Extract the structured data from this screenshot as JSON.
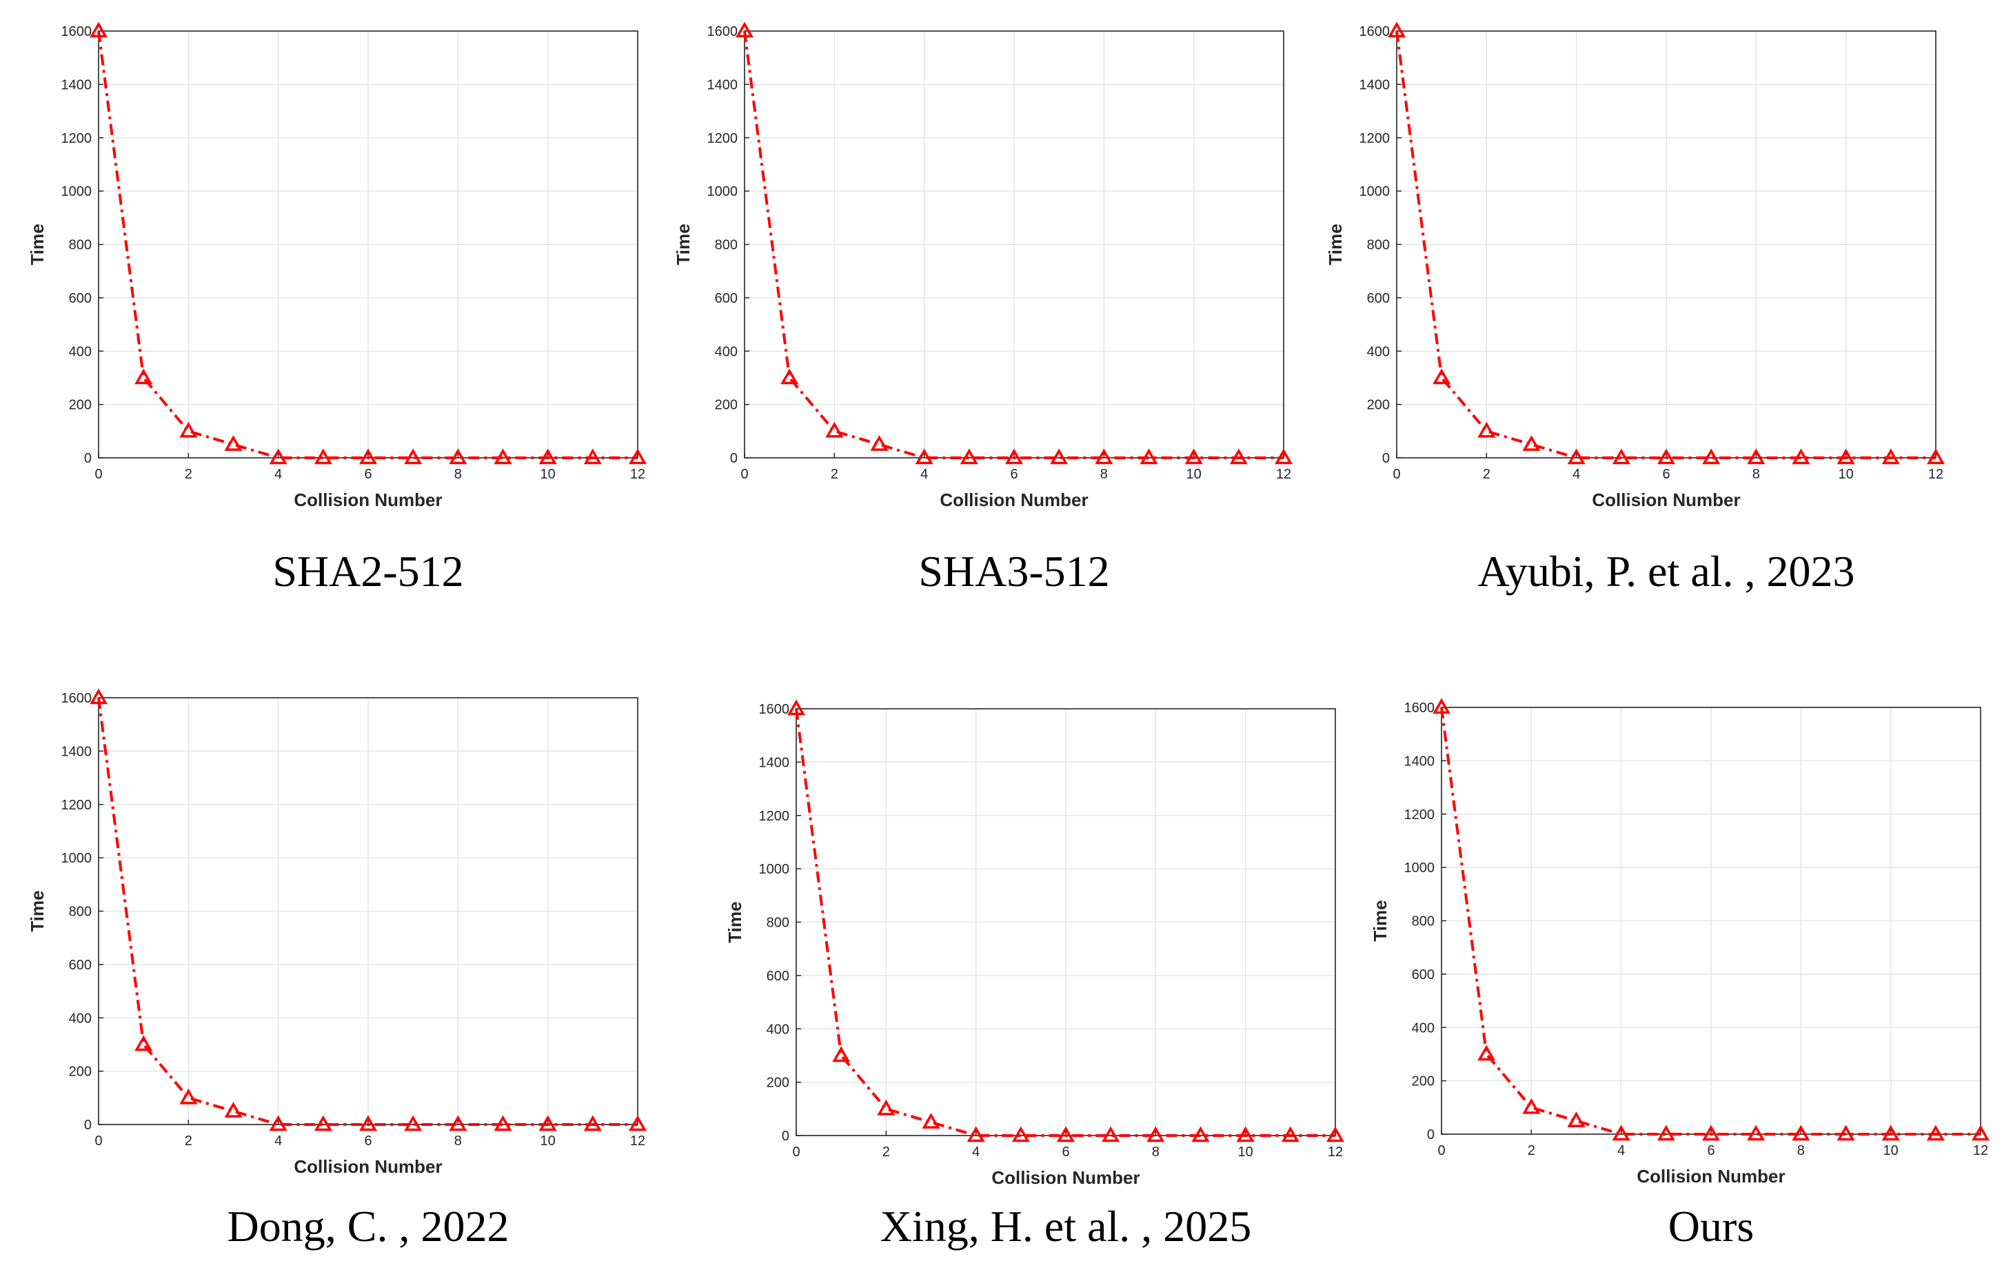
{
  "chart_data": [
    {
      "type": "line",
      "caption": "SHA2-512",
      "xlabel": "Collision Number",
      "ylabel": "Time",
      "x": [
        0,
        1,
        2,
        3,
        4,
        5,
        6,
        7,
        8,
        9,
        10,
        11,
        12
      ],
      "values": [
        1600,
        300,
        100,
        50,
        0,
        0,
        0,
        0,
        0,
        0,
        0,
        0,
        0
      ],
      "xlim": [
        0,
        12
      ],
      "ylim": [
        0,
        1600
      ],
      "xticks": [
        0,
        2,
        4,
        6,
        8,
        10,
        12
      ],
      "yticks": [
        0,
        200,
        400,
        600,
        800,
        1000,
        1200,
        1400,
        1600
      ],
      "grid": true,
      "series_style": {
        "color": "#ff0000",
        "line": "dash-dot",
        "marker": "triangle"
      }
    },
    {
      "type": "line",
      "caption": "SHA3-512",
      "xlabel": "Collision Number",
      "ylabel": "Time",
      "x": [
        0,
        1,
        2,
        3,
        4,
        5,
        6,
        7,
        8,
        9,
        10,
        11,
        12
      ],
      "values": [
        1600,
        300,
        100,
        50,
        0,
        0,
        0,
        0,
        0,
        0,
        0,
        0,
        0
      ],
      "xlim": [
        0,
        12
      ],
      "ylim": [
        0,
        1600
      ],
      "xticks": [
        0,
        2,
        4,
        6,
        8,
        10,
        12
      ],
      "yticks": [
        0,
        200,
        400,
        600,
        800,
        1000,
        1200,
        1400,
        1600
      ],
      "grid": true,
      "series_style": {
        "color": "#ff0000",
        "line": "dash-dot",
        "marker": "triangle"
      }
    },
    {
      "type": "line",
      "caption": "Ayubi, P. et al. , 2023",
      "xlabel": "Collision Number",
      "ylabel": "Time",
      "x": [
        0,
        1,
        2,
        3,
        4,
        5,
        6,
        7,
        8,
        9,
        10,
        11,
        12
      ],
      "values": [
        1600,
        300,
        100,
        50,
        0,
        0,
        0,
        0,
        0,
        0,
        0,
        0,
        0
      ],
      "xlim": [
        0,
        12
      ],
      "ylim": [
        0,
        1600
      ],
      "xticks": [
        0,
        2,
        4,
        6,
        8,
        10,
        12
      ],
      "yticks": [
        0,
        200,
        400,
        600,
        800,
        1000,
        1200,
        1400,
        1600
      ],
      "grid": true,
      "series_style": {
        "color": "#ff0000",
        "line": "dash-dot",
        "marker": "triangle"
      }
    },
    {
      "type": "line",
      "caption": "Dong, C. , 2022",
      "xlabel": "Collision Number",
      "ylabel": "Time",
      "x": [
        0,
        1,
        2,
        3,
        4,
        5,
        6,
        7,
        8,
        9,
        10,
        11,
        12
      ],
      "values": [
        1600,
        300,
        100,
        50,
        0,
        0,
        0,
        0,
        0,
        0,
        0,
        0,
        0
      ],
      "xlim": [
        0,
        12
      ],
      "ylim": [
        0,
        1600
      ],
      "xticks": [
        0,
        2,
        4,
        6,
        8,
        10,
        12
      ],
      "yticks": [
        0,
        200,
        400,
        600,
        800,
        1000,
        1200,
        1400,
        1600
      ],
      "grid": true,
      "series_style": {
        "color": "#ff0000",
        "line": "dash-dot",
        "marker": "triangle"
      }
    },
    {
      "type": "line",
      "caption": "Xing, H. et al. , 2025",
      "xlabel": "Collision Number",
      "ylabel": "Time",
      "x": [
        0,
        1,
        2,
        3,
        4,
        5,
        6,
        7,
        8,
        9,
        10,
        11,
        12
      ],
      "values": [
        1600,
        300,
        100,
        50,
        0,
        0,
        0,
        0,
        0,
        0,
        0,
        0,
        0
      ],
      "xlim": [
        0,
        12
      ],
      "ylim": [
        0,
        1600
      ],
      "xticks": [
        0,
        2,
        4,
        6,
        8,
        10,
        12
      ],
      "yticks": [
        0,
        200,
        400,
        600,
        800,
        1000,
        1200,
        1400,
        1600
      ],
      "grid": true,
      "series_style": {
        "color": "#ff0000",
        "line": "dash-dot",
        "marker": "triangle"
      }
    },
    {
      "type": "line",
      "caption": "Ours",
      "xlabel": "Collision Number",
      "ylabel": "Time",
      "x": [
        0,
        1,
        2,
        3,
        4,
        5,
        6,
        7,
        8,
        9,
        10,
        11,
        12
      ],
      "values": [
        1600,
        300,
        100,
        50,
        0,
        0,
        0,
        0,
        0,
        0,
        0,
        0,
        0
      ],
      "xlim": [
        0,
        12
      ],
      "ylim": [
        0,
        1600
      ],
      "xticks": [
        0,
        2,
        4,
        6,
        8,
        10,
        12
      ],
      "yticks": [
        0,
        200,
        400,
        600,
        800,
        1000,
        1200,
        1400,
        1600
      ],
      "grid": true,
      "series_style": {
        "color": "#ff0000",
        "line": "dash-dot",
        "marker": "triangle"
      }
    }
  ]
}
